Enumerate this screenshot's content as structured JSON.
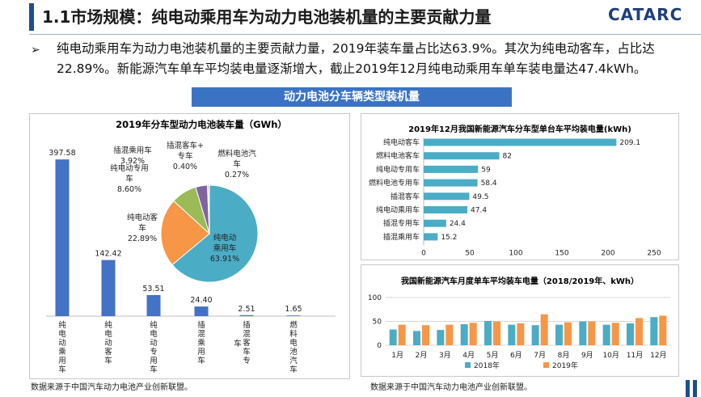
{
  "header": {
    "title": "1.1市场规模：纯电动乘用车为动力电池装机量的主要贡献力量",
    "logo": "CATARC"
  },
  "summary": {
    "bullet": "➢",
    "text": "纯电动乘用车为动力电池装机量的主要贡献力量，2019年装车量占比达63.9%。其次为纯电动客车，占比达22.89%。新能源汽车单车平均装电量逐渐增大，截止2019年12月纯电动乘用车单车装电量达47.4kWh。"
  },
  "section_banner": "动力电池分车辆类型装机量",
  "sources": {
    "left": "数据来源于中国汽车动力电池产业创新联盟。",
    "right": "数据来源于中国汽车动力电池产业创新联盟。"
  },
  "colors": {
    "accent": "#1f4e8c",
    "banner": "#3a73c4",
    "bar_blue": "#4472c4",
    "teal": "#4bacc6",
    "orange": "#f79646",
    "green": "#9bbb59",
    "purple": "#8064a2"
  },
  "chart_data": [
    {
      "type": "bar",
      "title": "2019年分车型动力电池装车量（GWh）",
      "categories": [
        "纯电动乘用车",
        "纯电动客车",
        "纯电动专用车",
        "插混乘用车",
        "插混客车+专车",
        "燃料电池汽车"
      ],
      "category_labels": [
        [
          "纯",
          "电",
          "动",
          "乘",
          "用",
          "车"
        ],
        [
          "纯",
          "电",
          "动",
          "客",
          "车"
        ],
        [
          "纯",
          "电",
          "动",
          "专",
          "用",
          "车"
        ],
        [
          "插",
          "混",
          "乘",
          "用",
          "车"
        ],
        [
          "插",
          "混",
          "客",
          "车",
          "专"
        ],
        [
          "燃",
          "料",
          "电",
          "池",
          "汽",
          "车"
        ]
      ],
      "extra_label_text": "车",
      "values": [
        397.58,
        142.42,
        53.51,
        24.4,
        2.51,
        1.65
      ],
      "value_labels": [
        "397.58",
        "142.42",
        "53.51",
        "24.40",
        "2.51",
        "1.65"
      ],
      "ylim": [
        0,
        400
      ],
      "grid": false,
      "legend": "none"
    },
    {
      "type": "pie",
      "slices": [
        {
          "label_lines": [
            "纯电动",
            "乘用车",
            "63.91%"
          ],
          "value": 63.91,
          "color": "#4bacc6"
        },
        {
          "label_lines": [
            "纯电动客",
            "车",
            "22.89%"
          ],
          "value": 22.89,
          "color": "#f79646"
        },
        {
          "label_lines": [
            "纯电动专用",
            "车",
            "8.60%"
          ],
          "value": 8.6,
          "color": "#9bbb59"
        },
        {
          "label_lines": [
            "插混乘用车",
            "3.92%"
          ],
          "value": 3.92,
          "color": "#8064a2"
        },
        {
          "label_lines": [
            "插混客车+",
            "专车",
            "0.40%"
          ],
          "value": 0.4,
          "color": "#c0504d"
        },
        {
          "label_lines": [
            "燃料电池汽",
            "车",
            "0.27%"
          ],
          "value": 0.27,
          "color": "#2c4d75"
        }
      ]
    },
    {
      "type": "bar",
      "orientation": "horizontal",
      "title": "2019年12月我国新能源汽车分车型单台车平均装电量(kWh)",
      "categories": [
        "纯电动客车",
        "燃料电池客车",
        "纯电动专用车",
        "燃料电池专用车",
        "插混客车",
        "纯电动乘用车",
        "插混专用车",
        "插混乘用车"
      ],
      "values": [
        209.1,
        82,
        59,
        58.4,
        49.5,
        47.4,
        24.4,
        15.2
      ],
      "value_labels": [
        "209.1",
        "82",
        "59",
        "58.4",
        "49.5",
        "47.4",
        "24.4",
        "15.2"
      ],
      "xlim": [
        0,
        250
      ],
      "xticks": [
        "0",
        "50",
        "100",
        "150",
        "200",
        "250"
      ],
      "grid": false,
      "legend": "none"
    },
    {
      "type": "bar",
      "title": "我国新能源汽车月度单车平均装车电量（2018/2019年、kWh）",
      "categories": [
        "1月",
        "2月",
        "3月",
        "4月",
        "5月",
        "6月",
        "7月",
        "8月",
        "9月",
        "10月",
        "11月",
        "12月"
      ],
      "series": [
        {
          "name": "2018年",
          "color": "#4bacc6",
          "values": [
            33,
            30,
            32,
            44,
            51,
            43,
            42,
            43,
            50,
            43,
            46,
            59
          ]
        },
        {
          "name": "2019年",
          "color": "#f79646",
          "values": [
            43,
            42,
            43,
            47,
            50,
            46,
            65,
            48,
            50,
            47,
            57,
            62
          ]
        }
      ],
      "ylim": [
        0,
        100
      ],
      "yticks": [
        "0",
        "50",
        "100"
      ],
      "grid": true,
      "legend": "bottom"
    }
  ]
}
